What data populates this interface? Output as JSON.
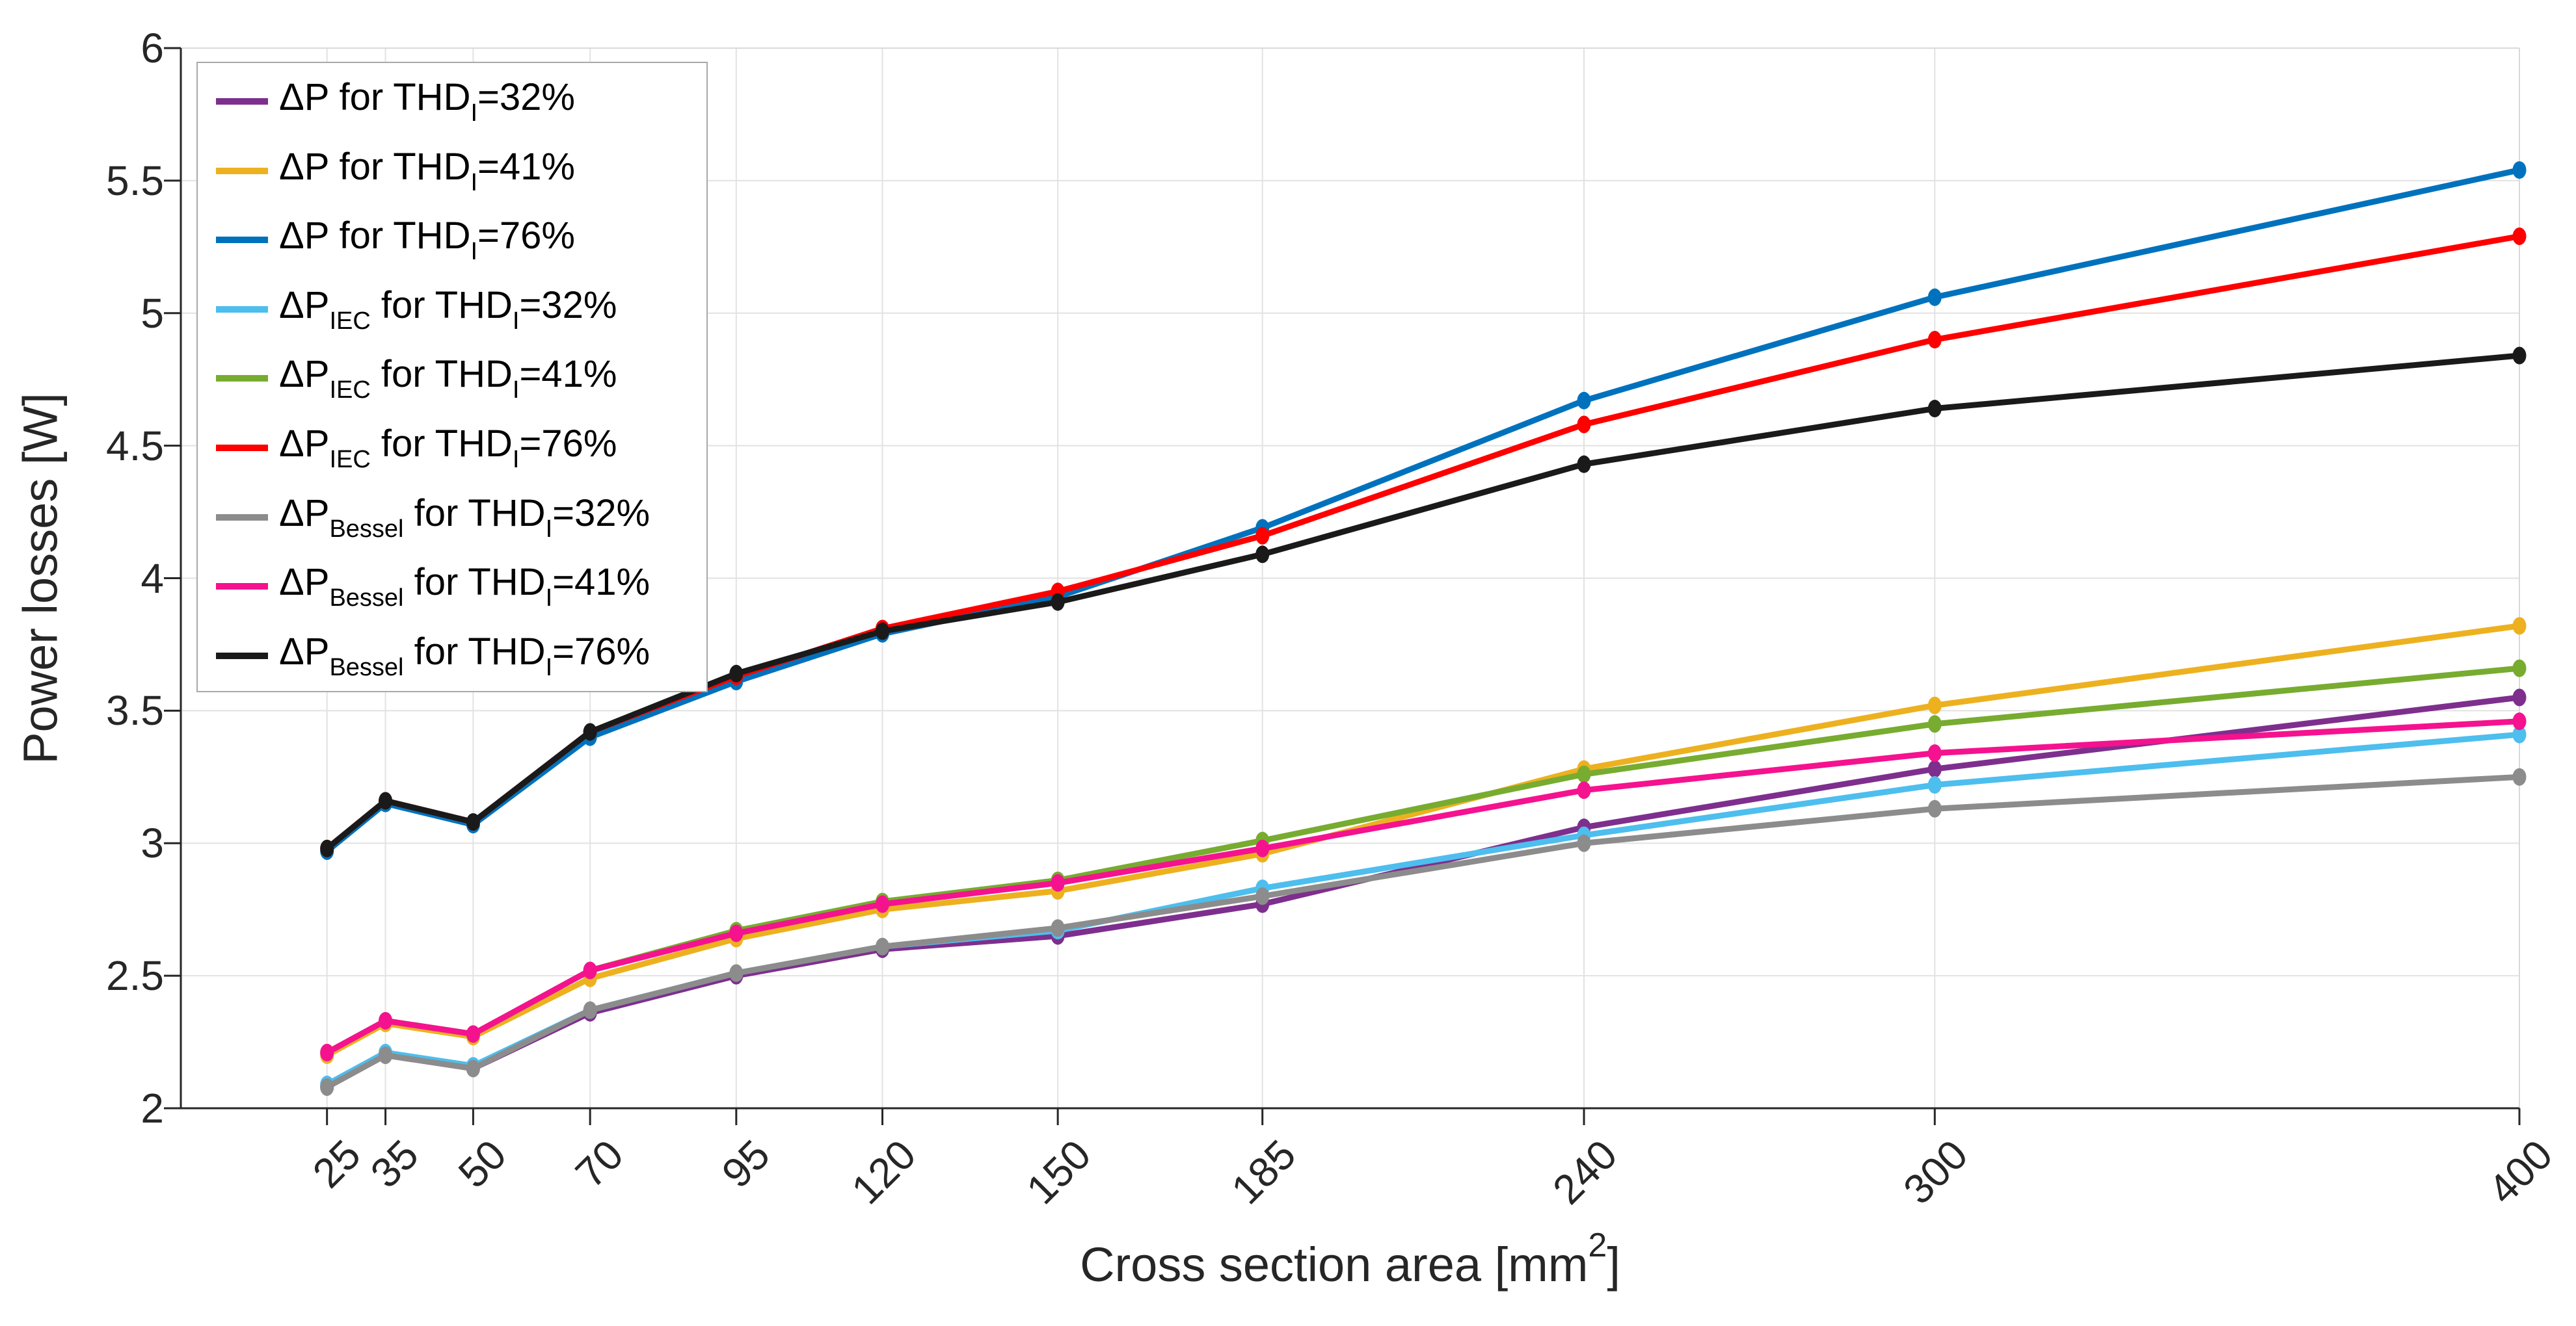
{
  "axes": {
    "ylabel": "Power losses [W]",
    "xlabel_prefix": "Cross section area [mm",
    "xlabel_sup": "2",
    "xlabel_suffix": "]",
    "xlabel_full": "Cross section area [mm²]",
    "x_tick_labels": [
      "25",
      "35",
      "50",
      "70",
      "95",
      "120",
      "150",
      "185",
      "240",
      "300",
      "400"
    ],
    "y_tick_labels": [
      "2",
      "2.5",
      "3",
      "3.5",
      "4",
      "4.5",
      "5",
      "5.5",
      "6"
    ],
    "grid_color": "#e2e2e2",
    "axis_color": "#262626",
    "box_light_color": "#d9d9d9"
  },
  "legend": {
    "border_color": "#a9a9a9",
    "items": [
      {
        "label_full": "ΔP for THD_I=32%",
        "prefix": "ΔP",
        "prefix_sub": "",
        "mid": " for THD",
        "mid_sub": "I",
        "suffix": "=32%",
        "color": "#7E2F8E"
      },
      {
        "label_full": "ΔP for THD_I=41%",
        "prefix": "ΔP",
        "prefix_sub": "",
        "mid": " for THD",
        "mid_sub": "I",
        "suffix": "=41%",
        "color": "#EDB120"
      },
      {
        "label_full": "ΔP for THD_I=76%",
        "prefix": "ΔP",
        "prefix_sub": "",
        "mid": " for THD",
        "mid_sub": "I",
        "suffix": "=76%",
        "color": "#0072BD"
      },
      {
        "label_full": "ΔP_IEC for THD_I=32%",
        "prefix": "ΔP",
        "prefix_sub": "IEC",
        "mid": " for THD",
        "mid_sub": "I",
        "suffix": "=32%",
        "color": "#4DBEEE"
      },
      {
        "label_full": "ΔP_IEC for THD_I=41%",
        "prefix": "ΔP",
        "prefix_sub": "IEC",
        "mid": " for THD",
        "mid_sub": "I",
        "suffix": "=41%",
        "color": "#77AC30"
      },
      {
        "label_full": "ΔP_IEC for THD_I=76%",
        "prefix": "ΔP",
        "prefix_sub": "IEC",
        "mid": " for THD",
        "mid_sub": "I",
        "suffix": "=76%",
        "color": "#FF0000"
      },
      {
        "label_full": "ΔP_Bessel for THD_I=32%",
        "prefix": "ΔP",
        "prefix_sub": "Bessel",
        "mid": " for THD",
        "mid_sub": "I",
        "suffix": "=32%",
        "color": "#8C8C8C"
      },
      {
        "label_full": "ΔP_Bessel for THD_I=41%",
        "prefix": "ΔP",
        "prefix_sub": "Bessel",
        "mid": " for THD",
        "mid_sub": "I",
        "suffix": "=41%",
        "color": "#F5128F"
      },
      {
        "label_full": "ΔP_Bessel for THD_I=76%",
        "prefix": "ΔP",
        "prefix_sub": "Bessel",
        "mid": " for THD",
        "mid_sub": "I",
        "suffix": "=76%",
        "color": "#1A1A1A"
      }
    ]
  },
  "chart_data": {
    "type": "line",
    "title": "",
    "xlabel": "Cross section area [mm²]",
    "ylabel": "Power losses [W]",
    "x": [
      25,
      35,
      50,
      70,
      95,
      120,
      150,
      185,
      240,
      300,
      400
    ],
    "xlim": [
      0,
      400
    ],
    "ylim": [
      2,
      6
    ],
    "y_ticks": [
      2,
      2.5,
      3,
      3.5,
      4,
      4.5,
      5,
      5.5,
      6
    ],
    "grid": true,
    "legend_position": "top-left",
    "marker": "circle",
    "series": [
      {
        "name": "ΔP for THD_I=32%",
        "color": "#7E2F8E",
        "values": [
          2.08,
          2.2,
          2.15,
          2.36,
          2.5,
          2.6,
          2.65,
          2.77,
          3.06,
          3.28,
          3.55
        ]
      },
      {
        "name": "ΔP for THD_I=41%",
        "color": "#EDB120",
        "values": [
          2.2,
          2.32,
          2.27,
          2.49,
          2.64,
          2.75,
          2.82,
          2.96,
          3.28,
          3.52,
          3.82
        ]
      },
      {
        "name": "ΔP for THD_I=76%",
        "color": "#0072BD",
        "values": [
          2.97,
          3.15,
          3.07,
          3.4,
          3.61,
          3.79,
          3.93,
          4.19,
          4.67,
          5.06,
          5.54
        ]
      },
      {
        "name": "ΔP_IEC for THD_I=32%",
        "color": "#4DBEEE",
        "values": [
          2.09,
          2.21,
          2.16,
          2.37,
          2.51,
          2.61,
          2.67,
          2.83,
          3.03,
          3.22,
          3.41
        ]
      },
      {
        "name": "ΔP_IEC for THD_I=41%",
        "color": "#77AC30",
        "values": [
          2.21,
          2.33,
          2.28,
          2.52,
          2.67,
          2.78,
          2.86,
          3.01,
          3.26,
          3.45,
          3.66
        ]
      },
      {
        "name": "ΔP_IEC for THD_I=76%",
        "color": "#FF0000",
        "values": [
          2.98,
          3.16,
          3.08,
          3.42,
          3.63,
          3.81,
          3.95,
          4.16,
          4.58,
          4.9,
          5.29
        ]
      },
      {
        "name": "ΔP_Bessel for THD_I=32%",
        "color": "#8C8C8C",
        "values": [
          2.08,
          2.2,
          2.15,
          2.37,
          2.51,
          2.61,
          2.68,
          2.8,
          3.0,
          3.13,
          3.25
        ]
      },
      {
        "name": "ΔP_Bessel for THD_I=41%",
        "color": "#F5128F",
        "values": [
          2.21,
          2.33,
          2.28,
          2.52,
          2.66,
          2.77,
          2.85,
          2.98,
          3.2,
          3.34,
          3.46
        ]
      },
      {
        "name": "ΔP_Bessel for THD_I=76%",
        "color": "#1A1A1A",
        "values": [
          2.98,
          3.16,
          3.08,
          3.42,
          3.64,
          3.8,
          3.91,
          4.09,
          4.43,
          4.64,
          4.84
        ]
      }
    ]
  }
}
